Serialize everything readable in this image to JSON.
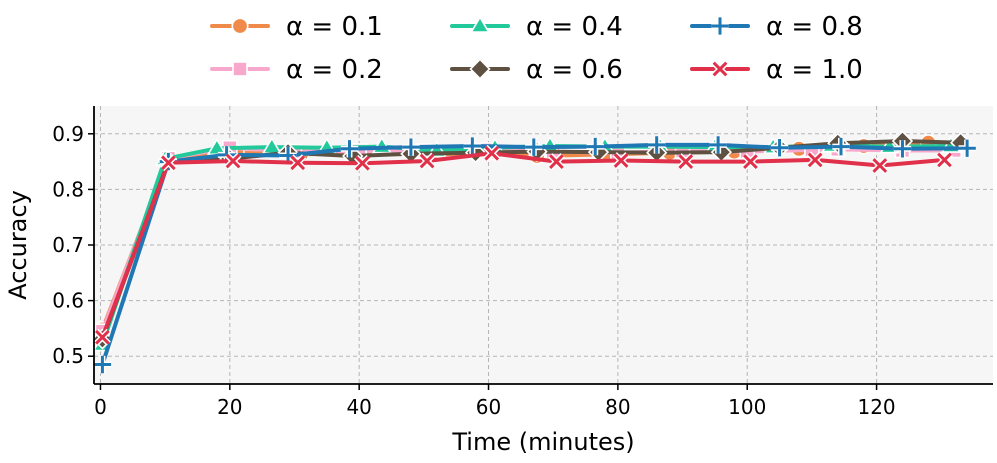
{
  "chart_data": {
    "type": "line",
    "title": "",
    "xlabel": "Time (minutes)",
    "ylabel": "Accuracy",
    "xlim": [
      -1,
      138
    ],
    "ylim": [
      0.45,
      0.95
    ],
    "xticks": [
      0,
      20,
      40,
      60,
      80,
      100,
      120
    ],
    "yticks": [
      0.5,
      0.6,
      0.7,
      0.8,
      0.9
    ],
    "xtick_labels": [
      "0",
      "20",
      "40",
      "60",
      "80",
      "100",
      "120"
    ],
    "ytick_labels": [
      "0.5",
      "0.6",
      "0.7",
      "0.8",
      "0.9"
    ],
    "grid": true,
    "legend_position": "top-outside",
    "legend_columns": 3,
    "background_color": "#f6f6f6",
    "series": [
      {
        "name": "α = 0.1",
        "color": "#f08a4b",
        "marker": "circle",
        "x": [
          0.3,
          10.5,
          21,
          31,
          41,
          51,
          61,
          67.5,
          78,
          88,
          98,
          108,
          118,
          128,
          133
        ],
        "y": [
          0.548,
          0.855,
          0.866,
          0.863,
          0.866,
          0.862,
          0.867,
          0.86,
          0.863,
          0.866,
          0.868,
          0.873,
          0.878,
          0.884,
          0.88
        ]
      },
      {
        "name": "α = 0.2",
        "color": "#f7a8cc",
        "marker": "square",
        "x": [
          0.3,
          10.5,
          20,
          30,
          40,
          50,
          60,
          70,
          80,
          90,
          100,
          110,
          114,
          124,
          132
        ],
        "y": [
          0.545,
          0.856,
          0.875,
          0.868,
          0.869,
          0.869,
          0.871,
          0.868,
          0.866,
          0.869,
          0.868,
          0.871,
          0.872,
          0.87,
          0.87
        ]
      },
      {
        "name": "α = 0.4",
        "color": "#22c99a",
        "marker": "triangle",
        "x": [
          0.3,
          10,
          18,
          26.5,
          35,
          43.5,
          52,
          61,
          69.5,
          78,
          86.5,
          95,
          104,
          113,
          122,
          131.5
        ],
        "y": [
          0.521,
          0.855,
          0.874,
          0.876,
          0.875,
          0.877,
          0.87,
          0.875,
          0.878,
          0.877,
          0.877,
          0.876,
          0.876,
          0.879,
          0.877,
          0.878
        ]
      },
      {
        "name": "α = 0.6",
        "color": "#5e5141",
        "marker": "diamond",
        "x": [
          0.3,
          10.5,
          20,
          29,
          39,
          48,
          58,
          67.5,
          77,
          86,
          96,
          105,
          114,
          124,
          133
        ],
        "y": [
          0.531,
          0.85,
          0.855,
          0.866,
          0.86,
          0.864,
          0.866,
          0.868,
          0.867,
          0.866,
          0.867,
          0.875,
          0.883,
          0.887,
          0.884
        ]
      },
      {
        "name": "α = 0.8",
        "color": "#1f77b4",
        "marker": "plus",
        "x": [
          0.3,
          10.5,
          19.5,
          29,
          38.5,
          48,
          57.5,
          67,
          76.5,
          86,
          95.5,
          105,
          114.5,
          124,
          134
        ],
        "y": [
          0.485,
          0.85,
          0.862,
          0.861,
          0.873,
          0.876,
          0.878,
          0.876,
          0.877,
          0.88,
          0.88,
          0.875,
          0.877,
          0.873,
          0.874
        ]
      },
      {
        "name": "α = 1.0",
        "color": "#e0304a",
        "marker": "x",
        "x": [
          0.3,
          10.5,
          20.5,
          30.5,
          40.5,
          50.5,
          60.5,
          70.5,
          80.5,
          90.5,
          100.5,
          110.5,
          120.5,
          130.5
        ],
        "y": [
          0.534,
          0.848,
          0.851,
          0.848,
          0.847,
          0.851,
          0.865,
          0.85,
          0.852,
          0.85,
          0.85,
          0.853,
          0.843,
          0.853
        ]
      }
    ]
  }
}
